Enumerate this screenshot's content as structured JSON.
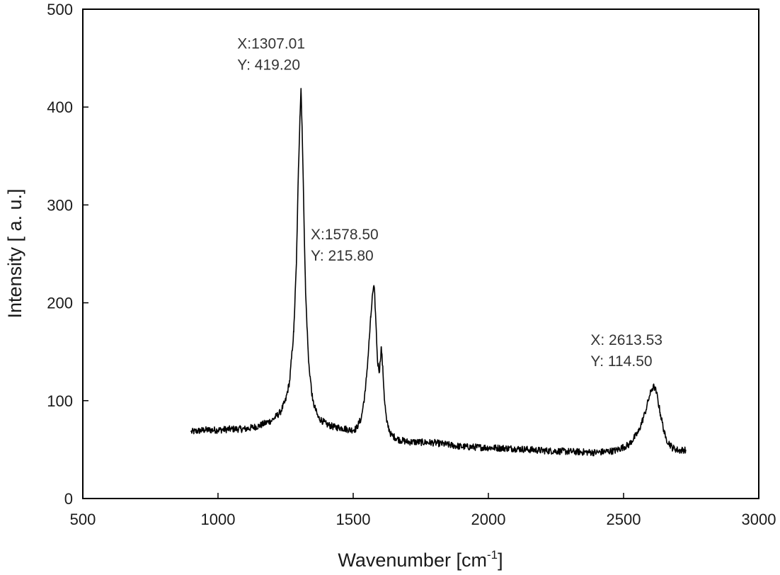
{
  "chart_data": {
    "type": "line",
    "title": "",
    "xlabel": "Wavenumber [cm",
    "xlabel_sup": "-1",
    "xlabel_suffix": "]",
    "ylabel": "Intensity [ a. u.]",
    "xlim": [
      500,
      3000
    ],
    "ylim": [
      0,
      500
    ],
    "x_ticks": [
      500,
      1000,
      1500,
      2000,
      2500,
      3000
    ],
    "y_ticks": [
      0,
      100,
      200,
      300,
      400,
      500
    ],
    "grid": false,
    "line_color": "#000000",
    "series": [
      {
        "x": [
          900,
          950,
          1000,
          1050,
          1100,
          1150,
          1200,
          1230,
          1250,
          1265,
          1280,
          1290,
          1297,
          1303,
          1307,
          1311,
          1317,
          1324,
          1335,
          1350,
          1370,
          1400,
          1430,
          1460,
          1490,
          1510,
          1530,
          1545,
          1555,
          1565,
          1572,
          1578,
          1584,
          1590,
          1597,
          1604,
          1610,
          1616,
          1624,
          1640,
          1670,
          1700,
          1800,
          1900,
          2000,
          2100,
          2200,
          2300,
          2400,
          2470,
          2520,
          2555,
          2580,
          2595,
          2605,
          2613,
          2622,
          2635,
          2655,
          2680,
          2705,
          2730
        ],
        "y": [
          68,
          70,
          70,
          71,
          71,
          74,
          80,
          88,
          100,
          120,
          170,
          240,
          330,
          390,
          419,
          380,
          300,
          210,
          140,
          100,
          83,
          76,
          73,
          72,
          70,
          71,
          82,
          110,
          145,
          185,
          210,
          215.8,
          180,
          140,
          130,
          155,
          130,
          100,
          78,
          65,
          60,
          58,
          57,
          53,
          52,
          51,
          49,
          48,
          47,
          49,
          55,
          68,
          88,
          104,
          112,
          114.5,
          108,
          88,
          62,
          52,
          49,
          50
        ]
      }
    ],
    "annotations": [
      {
        "line1": "X:1307.01",
        "line2": "Y: 419.20",
        "x": 1307.01,
        "y": 419.2
      },
      {
        "line1": "X:1578.50",
        "line2": "Y: 215.80",
        "x": 1578.5,
        "y": 215.8
      },
      {
        "line1": "X: 2613.53",
        "line2": "Y: 114.50",
        "x": 2613.53,
        "y": 114.5
      }
    ]
  }
}
